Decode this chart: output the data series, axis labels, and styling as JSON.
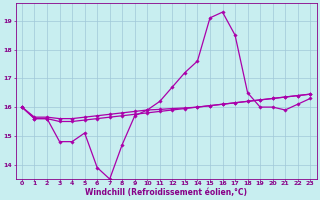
{
  "xlabel": "Windchill (Refroidissement éolien,°C)",
  "bg_color": "#c8eef0",
  "grid_color": "#a0c8d8",
  "line_color": "#aa00aa",
  "xlim": [
    -0.5,
    23.5
  ],
  "ylim": [
    13.5,
    19.6
  ],
  "yticks": [
    14,
    15,
    16,
    17,
    18,
    19
  ],
  "xticks": [
    0,
    1,
    2,
    3,
    4,
    5,
    6,
    7,
    8,
    9,
    10,
    11,
    12,
    13,
    14,
    15,
    16,
    17,
    18,
    19,
    20,
    21,
    22,
    23
  ],
  "series": [
    [
      16.0,
      15.6,
      15.6,
      14.8,
      14.8,
      15.1,
      13.9,
      13.5,
      14.7,
      15.7,
      15.9,
      16.2,
      16.7,
      17.2,
      17.6,
      19.1,
      19.3,
      18.5,
      16.5,
      16.0,
      16.0,
      15.9,
      16.1,
      16.3
    ],
    [
      16.0,
      15.6,
      15.6,
      15.5,
      15.5,
      15.55,
      15.6,
      15.65,
      15.7,
      15.75,
      15.8,
      15.85,
      15.9,
      15.95,
      16.0,
      16.05,
      16.1,
      16.15,
      16.2,
      16.25,
      16.3,
      16.35,
      16.4,
      16.45
    ],
    [
      16.0,
      15.65,
      15.65,
      15.6,
      15.6,
      15.65,
      15.7,
      15.75,
      15.8,
      15.85,
      15.9,
      15.92,
      15.95,
      15.97,
      16.0,
      16.05,
      16.1,
      16.15,
      16.2,
      16.25,
      16.3,
      16.35,
      16.4,
      16.45
    ]
  ],
  "marker": "D",
  "marker_size": 1.8,
  "line_width": 0.9,
  "tick_fontsize": 4.5,
  "label_fontsize": 5.5,
  "axis_color": "#880088"
}
